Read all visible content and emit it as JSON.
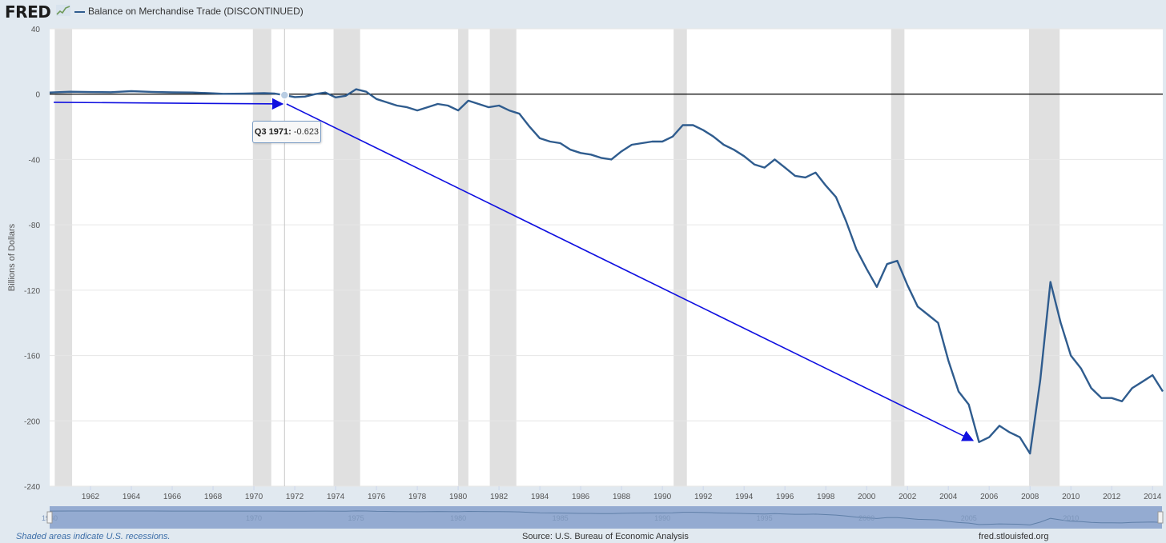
{
  "header": {
    "logo": "FRED",
    "logo_mark": "fred-chart-icon",
    "legend_label": "Balance on Merchandise Trade (DISCONTINUED)"
  },
  "colors": {
    "series": "#2f5c8e",
    "recession": "#e0e0e0",
    "arrow": "#1010e0",
    "navigator": "#8fa8cf",
    "background": "#e1e9f0",
    "plot": "#ffffff"
  },
  "tooltip": {
    "label": "Q3 1971:",
    "value": "-0.623"
  },
  "footer": {
    "note": "Shaded areas indicate U.S. recessions.",
    "source": "Source: U.S. Bureau of Economic Analysis",
    "site": "fred.stlouisfed.org"
  },
  "chart_data": {
    "type": "line",
    "title": "Balance on Merchandise Trade (DISCONTINUED)",
    "ylabel": "Billions of Dollars",
    "xlabel": "",
    "ylim": [
      -240,
      40
    ],
    "xlim": [
      1960.0,
      2014.5
    ],
    "yticks": [
      40,
      0,
      -40,
      -80,
      -120,
      -160,
      -200,
      -240
    ],
    "xticks": [
      1962,
      1964,
      1966,
      1968,
      1970,
      1972,
      1974,
      1976,
      1978,
      1980,
      1982,
      1984,
      1986,
      1988,
      1990,
      1992,
      1994,
      1996,
      1998,
      2000,
      2002,
      2004,
      2006,
      2008,
      2010,
      2012,
      2014
    ],
    "grid": true,
    "zero_line": true,
    "recessions": [
      [
        1960.25,
        1961.1
      ],
      [
        1969.95,
        1970.85
      ],
      [
        1973.9,
        1975.2
      ],
      [
        1980.0,
        1980.5
      ],
      [
        1981.55,
        1982.85
      ],
      [
        1990.55,
        1991.2
      ],
      [
        2001.2,
        2001.85
      ],
      [
        2007.95,
        2009.45
      ]
    ],
    "series": [
      {
        "name": "Balance on Merchandise Trade (DISCONTINUED)",
        "x": [
          1960.0,
          1961.0,
          1962.0,
          1963.0,
          1964.0,
          1965.0,
          1966.0,
          1967.0,
          1968.0,
          1968.5,
          1969.5,
          1970.5,
          1971.0,
          1971.5,
          1972.0,
          1972.5,
          1973.0,
          1973.5,
          1974.0,
          1974.5,
          1975.0,
          1975.5,
          1976.0,
          1976.5,
          1977.0,
          1977.5,
          1978.0,
          1978.5,
          1979.0,
          1979.5,
          1980.0,
          1980.5,
          1981.0,
          1981.5,
          1982.0,
          1982.5,
          1983.0,
          1983.5,
          1984.0,
          1984.5,
          1985.0,
          1985.5,
          1986.0,
          1986.5,
          1987.0,
          1987.5,
          1988.0,
          1988.5,
          1989.0,
          1989.5,
          1990.0,
          1990.5,
          1991.0,
          1991.5,
          1992.0,
          1992.5,
          1993.0,
          1993.5,
          1994.0,
          1994.5,
          1995.0,
          1995.5,
          1996.0,
          1996.5,
          1997.0,
          1997.5,
          1998.0,
          1998.5,
          1999.0,
          1999.5,
          2000.0,
          2000.5,
          2001.0,
          2001.5,
          2002.0,
          2002.5,
          2003.0,
          2003.5,
          2004.0,
          2004.5,
          2005.0,
          2005.5,
          2006.0,
          2006.5,
          2007.0,
          2007.5,
          2008.0,
          2008.5,
          2009.0,
          2009.5,
          2010.0,
          2010.5,
          2011.0,
          2011.5,
          2012.0,
          2012.5,
          2013.0,
          2013.5,
          2014.0,
          2014.5
        ],
        "values": [
          1.0,
          1.5,
          1.3,
          1.2,
          1.8,
          1.4,
          1.1,
          1.0,
          0.5,
          0.2,
          0.3,
          0.6,
          0.4,
          -0.623,
          -1.8,
          -1.5,
          0.0,
          1.0,
          -2.0,
          -1.0,
          3.0,
          1.5,
          -3.0,
          -5.0,
          -7.0,
          -8.0,
          -10.0,
          -8.0,
          -6.0,
          -7.0,
          -10.0,
          -4.0,
          -6.0,
          -8.0,
          -7.0,
          -10.0,
          -12.0,
          -20.0,
          -27.0,
          -29.0,
          -30.0,
          -34.0,
          -36.0,
          -37.0,
          -39.0,
          -40.0,
          -35.0,
          -31.0,
          -30.0,
          -29.0,
          -29.0,
          -26.0,
          -19.0,
          -19.0,
          -22.0,
          -26.0,
          -31.0,
          -34.0,
          -38.0,
          -43.0,
          -45.0,
          -40.0,
          -45.0,
          -50.0,
          -51.0,
          -48.0,
          -56.0,
          -63.0,
          -78.0,
          -95.0,
          -107.0,
          -118.0,
          -104.0,
          -102.0,
          -117.0,
          -130.0,
          -135.0,
          -140.0,
          -163.0,
          -182.0,
          -190.0,
          -213.0,
          -210.0,
          -203.0,
          -207.0,
          -210.0,
          -220.0,
          -175.0,
          -115.0,
          -140.0,
          -160.0,
          -168.0,
          -180.0,
          -186.0,
          -186.0,
          -188.0,
          -180.0,
          -176.0,
          -172.0,
          -182.0
        ]
      }
    ],
    "annotations": [
      {
        "type": "arrow",
        "from": [
          1960.2,
          -5.0
        ],
        "to": [
          1971.4,
          -6.0
        ]
      },
      {
        "type": "arrow",
        "from": [
          1971.6,
          -6.0
        ],
        "to": [
          2005.2,
          -212.0
        ]
      }
    ],
    "navigator": {
      "labels": [
        "1960",
        "1970",
        "1975",
        "1980",
        "1985",
        "1990",
        "1995",
        "2000",
        "2005",
        "2010"
      ]
    }
  }
}
